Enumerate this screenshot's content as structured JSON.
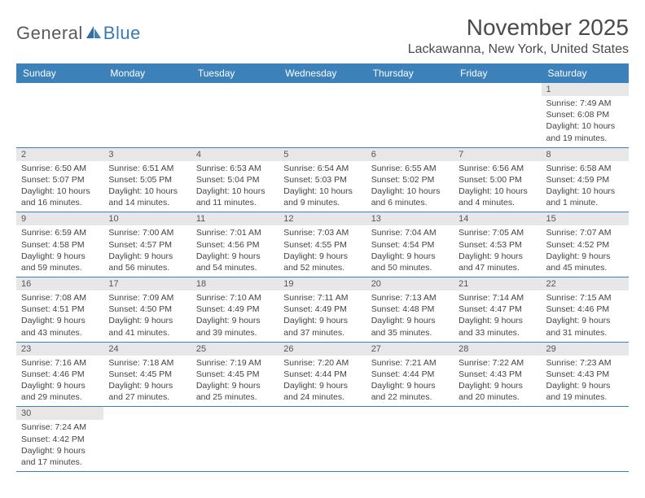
{
  "logo": {
    "text1": "General",
    "text2": "Blue"
  },
  "title": "November 2025",
  "location": "Lackawanna, New York, United States",
  "day_headers": [
    "Sunday",
    "Monday",
    "Tuesday",
    "Wednesday",
    "Thursday",
    "Friday",
    "Saturday"
  ],
  "colors": {
    "header_bg": "#3d81bb",
    "header_text": "#ffffff",
    "daynum_bg": "#e7e7e7",
    "border": "#3d81bb",
    "title_color": "#4a4a4a",
    "logo_gray": "#5a5a5a",
    "logo_blue": "#3a7ab5"
  },
  "weeks": [
    [
      {
        "n": "",
        "sr": "",
        "ss": "",
        "dl": ""
      },
      {
        "n": "",
        "sr": "",
        "ss": "",
        "dl": ""
      },
      {
        "n": "",
        "sr": "",
        "ss": "",
        "dl": ""
      },
      {
        "n": "",
        "sr": "",
        "ss": "",
        "dl": ""
      },
      {
        "n": "",
        "sr": "",
        "ss": "",
        "dl": ""
      },
      {
        "n": "",
        "sr": "",
        "ss": "",
        "dl": ""
      },
      {
        "n": "1",
        "sr": "Sunrise: 7:49 AM",
        "ss": "Sunset: 6:08 PM",
        "dl": "Daylight: 10 hours and 19 minutes."
      }
    ],
    [
      {
        "n": "2",
        "sr": "Sunrise: 6:50 AM",
        "ss": "Sunset: 5:07 PM",
        "dl": "Daylight: 10 hours and 16 minutes."
      },
      {
        "n": "3",
        "sr": "Sunrise: 6:51 AM",
        "ss": "Sunset: 5:05 PM",
        "dl": "Daylight: 10 hours and 14 minutes."
      },
      {
        "n": "4",
        "sr": "Sunrise: 6:53 AM",
        "ss": "Sunset: 5:04 PM",
        "dl": "Daylight: 10 hours and 11 minutes."
      },
      {
        "n": "5",
        "sr": "Sunrise: 6:54 AM",
        "ss": "Sunset: 5:03 PM",
        "dl": "Daylight: 10 hours and 9 minutes."
      },
      {
        "n": "6",
        "sr": "Sunrise: 6:55 AM",
        "ss": "Sunset: 5:02 PM",
        "dl": "Daylight: 10 hours and 6 minutes."
      },
      {
        "n": "7",
        "sr": "Sunrise: 6:56 AM",
        "ss": "Sunset: 5:00 PM",
        "dl": "Daylight: 10 hours and 4 minutes."
      },
      {
        "n": "8",
        "sr": "Sunrise: 6:58 AM",
        "ss": "Sunset: 4:59 PM",
        "dl": "Daylight: 10 hours and 1 minute."
      }
    ],
    [
      {
        "n": "9",
        "sr": "Sunrise: 6:59 AM",
        "ss": "Sunset: 4:58 PM",
        "dl": "Daylight: 9 hours and 59 minutes."
      },
      {
        "n": "10",
        "sr": "Sunrise: 7:00 AM",
        "ss": "Sunset: 4:57 PM",
        "dl": "Daylight: 9 hours and 56 minutes."
      },
      {
        "n": "11",
        "sr": "Sunrise: 7:01 AM",
        "ss": "Sunset: 4:56 PM",
        "dl": "Daylight: 9 hours and 54 minutes."
      },
      {
        "n": "12",
        "sr": "Sunrise: 7:03 AM",
        "ss": "Sunset: 4:55 PM",
        "dl": "Daylight: 9 hours and 52 minutes."
      },
      {
        "n": "13",
        "sr": "Sunrise: 7:04 AM",
        "ss": "Sunset: 4:54 PM",
        "dl": "Daylight: 9 hours and 50 minutes."
      },
      {
        "n": "14",
        "sr": "Sunrise: 7:05 AM",
        "ss": "Sunset: 4:53 PM",
        "dl": "Daylight: 9 hours and 47 minutes."
      },
      {
        "n": "15",
        "sr": "Sunrise: 7:07 AM",
        "ss": "Sunset: 4:52 PM",
        "dl": "Daylight: 9 hours and 45 minutes."
      }
    ],
    [
      {
        "n": "16",
        "sr": "Sunrise: 7:08 AM",
        "ss": "Sunset: 4:51 PM",
        "dl": "Daylight: 9 hours and 43 minutes."
      },
      {
        "n": "17",
        "sr": "Sunrise: 7:09 AM",
        "ss": "Sunset: 4:50 PM",
        "dl": "Daylight: 9 hours and 41 minutes."
      },
      {
        "n": "18",
        "sr": "Sunrise: 7:10 AM",
        "ss": "Sunset: 4:49 PM",
        "dl": "Daylight: 9 hours and 39 minutes."
      },
      {
        "n": "19",
        "sr": "Sunrise: 7:11 AM",
        "ss": "Sunset: 4:49 PM",
        "dl": "Daylight: 9 hours and 37 minutes."
      },
      {
        "n": "20",
        "sr": "Sunrise: 7:13 AM",
        "ss": "Sunset: 4:48 PM",
        "dl": "Daylight: 9 hours and 35 minutes."
      },
      {
        "n": "21",
        "sr": "Sunrise: 7:14 AM",
        "ss": "Sunset: 4:47 PM",
        "dl": "Daylight: 9 hours and 33 minutes."
      },
      {
        "n": "22",
        "sr": "Sunrise: 7:15 AM",
        "ss": "Sunset: 4:46 PM",
        "dl": "Daylight: 9 hours and 31 minutes."
      }
    ],
    [
      {
        "n": "23",
        "sr": "Sunrise: 7:16 AM",
        "ss": "Sunset: 4:46 PM",
        "dl": "Daylight: 9 hours and 29 minutes."
      },
      {
        "n": "24",
        "sr": "Sunrise: 7:18 AM",
        "ss": "Sunset: 4:45 PM",
        "dl": "Daylight: 9 hours and 27 minutes."
      },
      {
        "n": "25",
        "sr": "Sunrise: 7:19 AM",
        "ss": "Sunset: 4:45 PM",
        "dl": "Daylight: 9 hours and 25 minutes."
      },
      {
        "n": "26",
        "sr": "Sunrise: 7:20 AM",
        "ss": "Sunset: 4:44 PM",
        "dl": "Daylight: 9 hours and 24 minutes."
      },
      {
        "n": "27",
        "sr": "Sunrise: 7:21 AM",
        "ss": "Sunset: 4:44 PM",
        "dl": "Daylight: 9 hours and 22 minutes."
      },
      {
        "n": "28",
        "sr": "Sunrise: 7:22 AM",
        "ss": "Sunset: 4:43 PM",
        "dl": "Daylight: 9 hours and 20 minutes."
      },
      {
        "n": "29",
        "sr": "Sunrise: 7:23 AM",
        "ss": "Sunset: 4:43 PM",
        "dl": "Daylight: 9 hours and 19 minutes."
      }
    ],
    [
      {
        "n": "30",
        "sr": "Sunrise: 7:24 AM",
        "ss": "Sunset: 4:42 PM",
        "dl": "Daylight: 9 hours and 17 minutes."
      },
      {
        "n": "",
        "sr": "",
        "ss": "",
        "dl": ""
      },
      {
        "n": "",
        "sr": "",
        "ss": "",
        "dl": ""
      },
      {
        "n": "",
        "sr": "",
        "ss": "",
        "dl": ""
      },
      {
        "n": "",
        "sr": "",
        "ss": "",
        "dl": ""
      },
      {
        "n": "",
        "sr": "",
        "ss": "",
        "dl": ""
      },
      {
        "n": "",
        "sr": "",
        "ss": "",
        "dl": ""
      }
    ]
  ]
}
